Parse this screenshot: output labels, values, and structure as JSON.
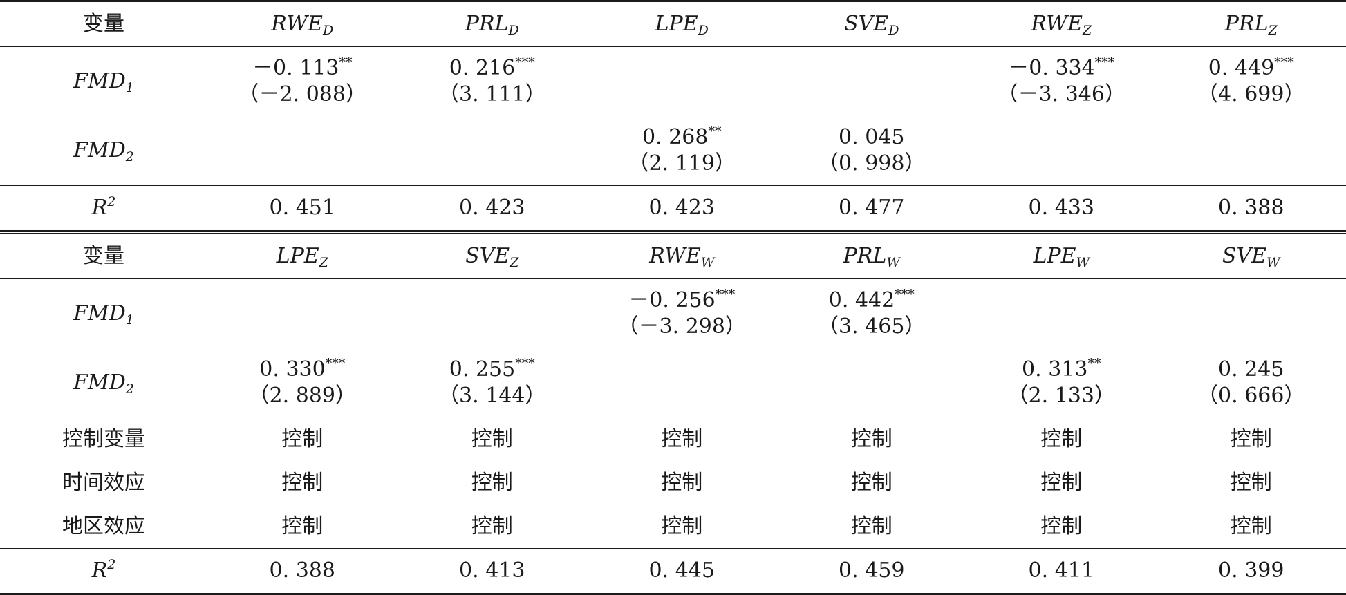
{
  "panel_top": {
    "header": [
      "变量",
      "RWE",
      "PRL",
      "LPE",
      "SVE",
      "RWE",
      "PRL"
    ],
    "header_subs": [
      "",
      "D",
      "D",
      "D",
      "D",
      "Z",
      "Z"
    ],
    "rows": [
      {
        "label": "FMD",
        "label_sub": "1",
        "cells": [
          {
            "coef": "－0. 113",
            "stars": "**",
            "t": "（－2. 088）"
          },
          {
            "coef": "0. 216",
            "stars": "***",
            "t": "（3. 111）"
          },
          {
            "coef": "",
            "stars": "",
            "t": ""
          },
          {
            "coef": "",
            "stars": "",
            "t": ""
          },
          {
            "coef": "－0. 334",
            "stars": "***",
            "t": "（－3. 346）"
          },
          {
            "coef": "0. 449",
            "stars": "***",
            "t": "（4. 699）"
          }
        ]
      },
      {
        "label": "FMD",
        "label_sub": "2",
        "cells": [
          {
            "coef": "",
            "stars": "",
            "t": ""
          },
          {
            "coef": "",
            "stars": "",
            "t": ""
          },
          {
            "coef": "0. 268",
            "stars": "**",
            "t": "（2. 119）"
          },
          {
            "coef": "0. 045",
            "stars": "",
            "t": "（0. 998）"
          },
          {
            "coef": "",
            "stars": "",
            "t": ""
          },
          {
            "coef": "",
            "stars": "",
            "t": ""
          }
        ]
      }
    ],
    "r2_label": "R",
    "r2_sup": "2",
    "r2": [
      "0. 451",
      "0. 423",
      "0. 423",
      "0. 477",
      "0. 433",
      "0. 388"
    ]
  },
  "panel_bottom": {
    "header": [
      "变量",
      "LPE",
      "SVE",
      "RWE",
      "PRL",
      "LPE",
      "SVE"
    ],
    "header_subs": [
      "",
      "Z",
      "Z",
      "W",
      "W",
      "W",
      "W"
    ],
    "rows": [
      {
        "label": "FMD",
        "label_sub": "1",
        "cells": [
          {
            "coef": "",
            "stars": "",
            "t": ""
          },
          {
            "coef": "",
            "stars": "",
            "t": ""
          },
          {
            "coef": "－0. 256",
            "stars": "***",
            "t": "（－3. 298）"
          },
          {
            "coef": "0. 442",
            "stars": "***",
            "t": "（3. 465）"
          },
          {
            "coef": "",
            "stars": "",
            "t": ""
          },
          {
            "coef": "",
            "stars": "",
            "t": ""
          }
        ]
      },
      {
        "label": "FMD",
        "label_sub": "2",
        "cells": [
          {
            "coef": "0. 330",
            "stars": "***",
            "t": "（2. 889）"
          },
          {
            "coef": "0. 255",
            "stars": "***",
            "t": "（3. 144）"
          },
          {
            "coef": "",
            "stars": "",
            "t": ""
          },
          {
            "coef": "",
            "stars": "",
            "t": ""
          },
          {
            "coef": "0. 313",
            "stars": "**",
            "t": "（2. 133）"
          },
          {
            "coef": "0. 245",
            "stars": "",
            "t": "（0. 666）"
          }
        ]
      }
    ],
    "controls": [
      {
        "label": "控制变量",
        "values": [
          "控制",
          "控制",
          "控制",
          "控制",
          "控制",
          "控制"
        ]
      },
      {
        "label": "时间效应",
        "values": [
          "控制",
          "控制",
          "控制",
          "控制",
          "控制",
          "控制"
        ]
      },
      {
        "label": "地区效应",
        "values": [
          "控制",
          "控制",
          "控制",
          "控制",
          "控制",
          "控制"
        ]
      }
    ],
    "r2_label": "R",
    "r2_sup": "2",
    "r2": [
      "0. 388",
      "0. 413",
      "0. 445",
      "0. 459",
      "0. 411",
      "0. 399"
    ]
  }
}
